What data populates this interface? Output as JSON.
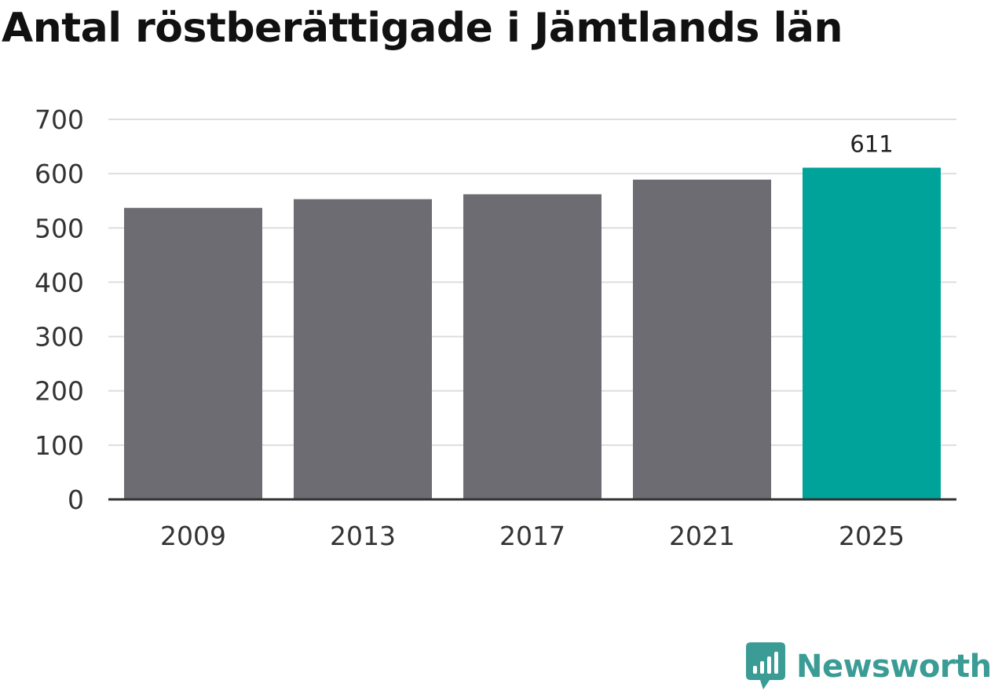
{
  "title": "Antal röstberättigade i Jämtlands län",
  "brand": {
    "name": "Newsworthy",
    "color": "#3b9c95",
    "icon": "chart-bubble-icon"
  },
  "colors": {
    "bar": "#6d6c73",
    "highlight": "#00a39a",
    "grid": "#dedede",
    "axis": "#333333"
  },
  "chart_data": {
    "type": "bar",
    "title": "Antal röstberättigade i Jämtlands län",
    "categories": [
      "2009",
      "2013",
      "2017",
      "2021",
      "2025"
    ],
    "values": [
      537,
      553,
      562,
      589,
      611
    ],
    "highlight_index": 4,
    "value_labels": [
      "",
      "",
      "",
      "",
      "611"
    ],
    "y_ticks": [
      "0",
      "100",
      "200",
      "300",
      "400",
      "500",
      "600",
      "700"
    ],
    "ylim": [
      0,
      700
    ],
    "grid": true,
    "legend": "none",
    "xlabel": "",
    "ylabel": ""
  }
}
